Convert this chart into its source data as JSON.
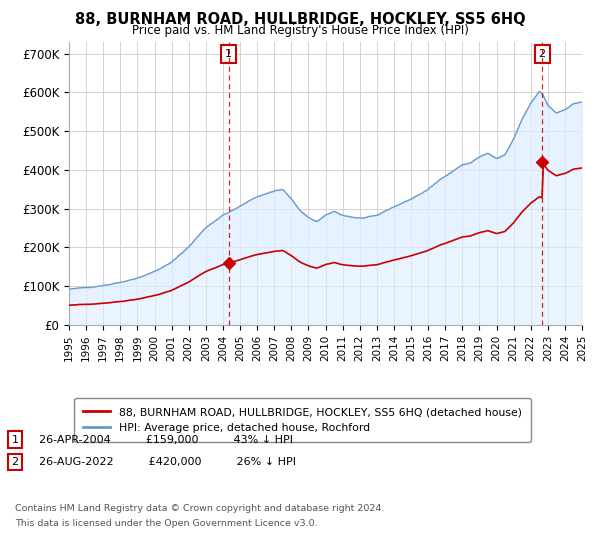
{
  "title": "88, BURNHAM ROAD, HULLBRIDGE, HOCKLEY, SS5 6HQ",
  "subtitle": "Price paid vs. HM Land Registry's House Price Index (HPI)",
  "ylabel_ticks": [
    "£0",
    "£100K",
    "£200K",
    "£300K",
    "£400K",
    "£500K",
    "£600K",
    "£700K"
  ],
  "ytick_values": [
    0,
    100000,
    200000,
    300000,
    400000,
    500000,
    600000,
    700000
  ],
  "ylim": [
    0,
    730000
  ],
  "xlim_start": 1995,
  "xlim_end": 2025,
  "sale1_x": 2004.33,
  "sale1_y": 159000,
  "sale1_label": "1",
  "sale2_x": 2022.67,
  "sale2_y": 420000,
  "sale2_label": "2",
  "house_color": "#cc0000",
  "hpi_color": "#6699cc",
  "hpi_fill_color": "#ddeeff",
  "dashed_color": "#cc0000",
  "legend_house": "88, BURNHAM ROAD, HULLBRIDGE, HOCKLEY, SS5 6HQ (detached house)",
  "legend_hpi": "HPI: Average price, detached house, Rochford",
  "footer3": "Contains HM Land Registry data © Crown copyright and database right 2024.",
  "footer4": "This data is licensed under the Open Government Licence v3.0.",
  "background_color": "#ffffff",
  "grid_color": "#cccccc"
}
